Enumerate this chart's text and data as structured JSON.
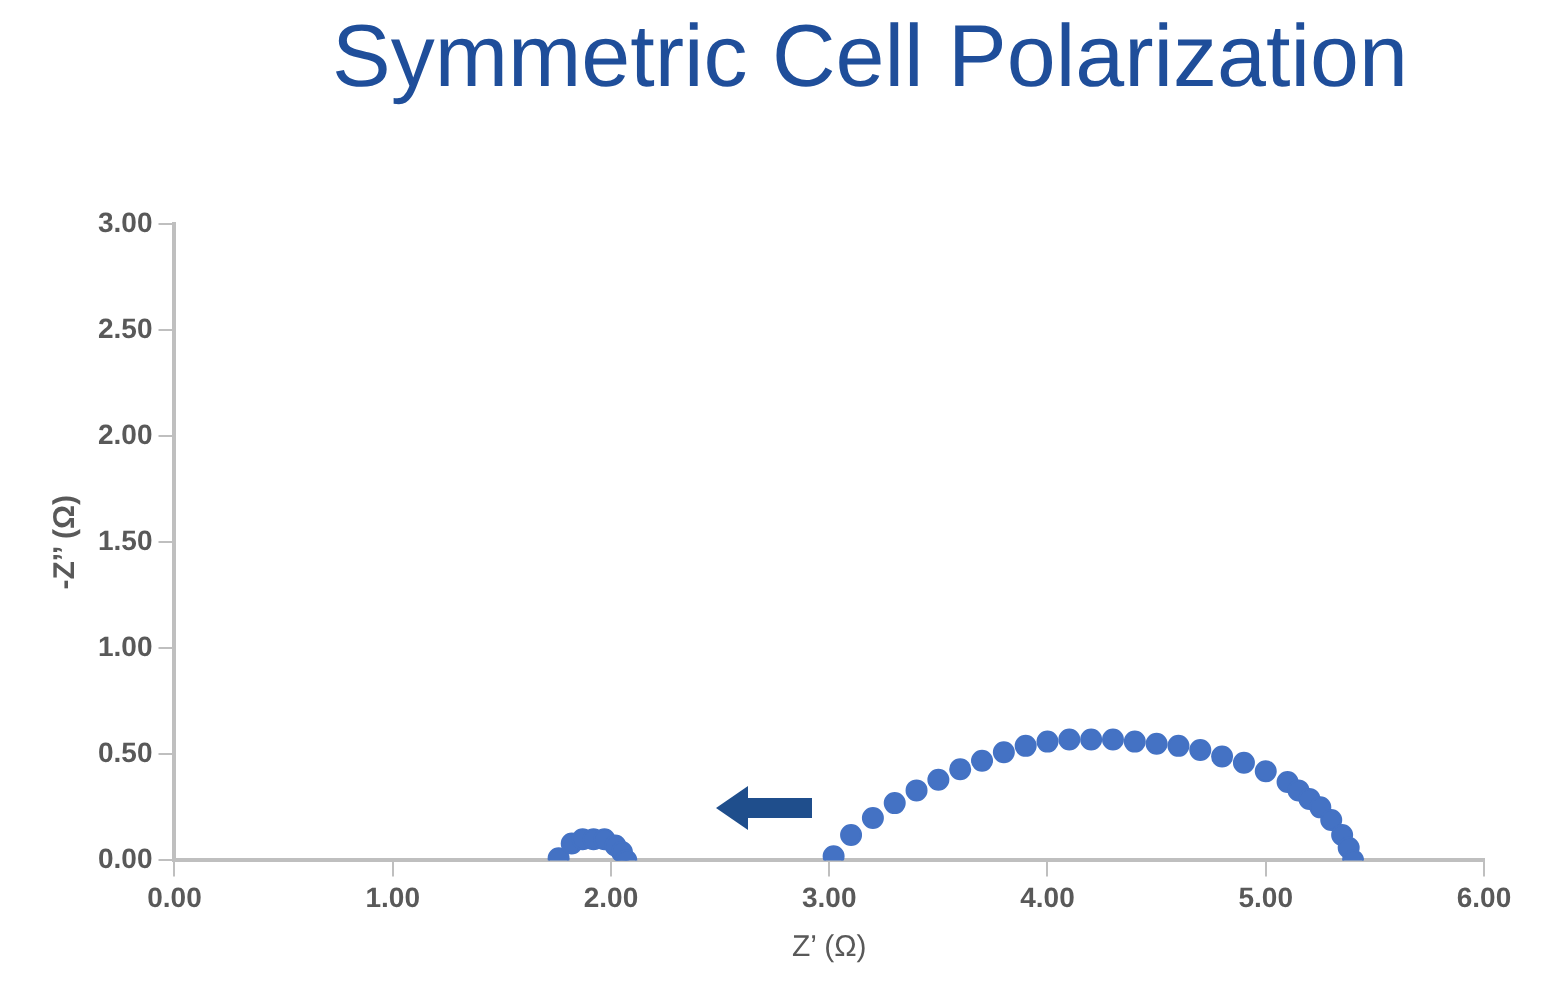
{
  "chart_data": {
    "type": "scatter",
    "title": "Symmetric Cell Polarization",
    "xlabel": "Z’ (Ω)",
    "ylabel": "-Z’’ (Ω)",
    "marker": "circle",
    "grid": false,
    "legend": false,
    "xlim": [
      0,
      6
    ],
    "xticks": [
      {
        "value": 0,
        "label": "0.00"
      },
      {
        "value": 1,
        "label": "1.00"
      },
      {
        "value": 2,
        "label": "2.00"
      },
      {
        "value": 3,
        "label": "3.00"
      },
      {
        "value": 4,
        "label": "4.00"
      },
      {
        "value": 5,
        "label": "5.00"
      },
      {
        "value": 6,
        "label": "6.00"
      }
    ],
    "ylim": [
      0,
      3
    ],
    "yticks": [
      {
        "value": 0,
        "label": "0.00"
      },
      {
        "value": 0.5,
        "label": "0.50"
      },
      {
        "value": 1,
        "label": "1.00"
      },
      {
        "value": 1.5,
        "label": "1.50"
      },
      {
        "value": 2,
        "label": "2.00"
      },
      {
        "value": 2.5,
        "label": "2.50"
      },
      {
        "value": 3,
        "label": "3.00"
      }
    ],
    "series": [
      {
        "color": "#4472c4",
        "x": [
          1.76,
          1.82,
          1.87,
          1.92,
          1.97,
          2.02,
          2.05,
          2.07,
          3.02,
          3.1,
          3.2,
          3.3,
          3.4,
          3.5,
          3.6,
          3.7,
          3.8,
          3.9,
          4.0,
          4.1,
          4.2,
          4.3,
          4.4,
          4.5,
          4.6,
          4.7,
          4.8,
          4.9,
          5.0,
          5.1,
          5.15,
          5.2,
          5.25,
          5.3,
          5.35,
          5.38,
          5.4
        ],
        "values": [
          0.01,
          0.08,
          0.1,
          0.1,
          0.1,
          0.07,
          0.04,
          0.0,
          0.02,
          0.12,
          0.2,
          0.27,
          0.33,
          0.38,
          0.43,
          0.47,
          0.51,
          0.54,
          0.56,
          0.57,
          0.57,
          0.57,
          0.56,
          0.55,
          0.54,
          0.52,
          0.49,
          0.46,
          0.42,
          0.37,
          0.33,
          0.29,
          0.25,
          0.19,
          0.12,
          0.06,
          0.0
        ]
      }
    ]
  }
}
